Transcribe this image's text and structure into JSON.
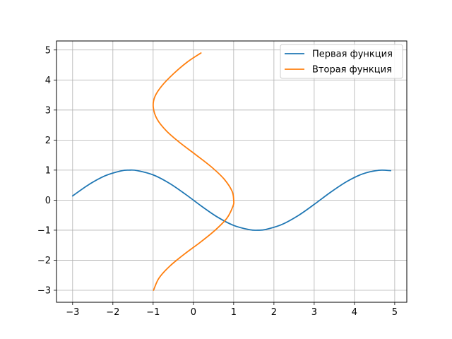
{
  "chart_data": {
    "type": "line",
    "title": "",
    "xlabel": "",
    "ylabel": "",
    "xlim": [
      -3.4,
      5.3
    ],
    "ylim": [
      -3.4,
      5.3
    ],
    "xticks": [
      -3,
      -2,
      -1,
      0,
      1,
      2,
      3,
      4,
      5
    ],
    "yticks": [
      -3,
      -2,
      -1,
      0,
      1,
      2,
      3,
      4,
      5
    ],
    "xtick_labels": [
      "−3",
      "−2",
      "−1",
      "0",
      "1",
      "2",
      "3",
      "4",
      "5"
    ],
    "ytick_labels": [
      "−3",
      "−2",
      "−1",
      "0",
      "1",
      "2",
      "3",
      "4",
      "5"
    ],
    "grid": true,
    "legend_position": "top-right",
    "series": [
      {
        "name": "Первая функция",
        "color": "#1f77b4",
        "x": [
          -3.0,
          -2.6,
          -2.2,
          -1.8,
          -1.6,
          -1.4,
          -1.0,
          -0.6,
          -0.2,
          0.2,
          0.6,
          1.0,
          1.4,
          1.6,
          1.8,
          2.2,
          2.6,
          3.0,
          3.4,
          3.8,
          4.2,
          4.6,
          4.9
        ],
        "y": [
          0.141,
          0.516,
          0.808,
          0.974,
          1.0,
          0.985,
          0.841,
          0.565,
          0.199,
          -0.199,
          -0.565,
          -0.841,
          -0.985,
          -1.0,
          -0.974,
          -0.808,
          -0.516,
          -0.141,
          0.256,
          0.612,
          0.872,
          0.994,
          0.982
        ]
      },
      {
        "name": "Вторая функция",
        "color": "#ff7f0e",
        "x": [
          -0.99,
          -0.857,
          -0.589,
          -0.227,
          0.174,
          0.54,
          0.832,
          0.983,
          1.0,
          0.96,
          0.764,
          0.453,
          0.071,
          -0.323,
          -0.666,
          -0.903,
          -0.997,
          -0.958,
          -0.787,
          -0.5,
          -0.15,
          0.188
        ],
        "y": [
          -3.0,
          -2.6,
          -2.2,
          -1.8,
          -1.4,
          -1.0,
          -0.6,
          -0.2,
          0.0,
          0.3,
          0.7,
          1.1,
          1.5,
          1.9,
          2.3,
          2.7,
          3.1,
          3.44,
          3.8,
          4.2,
          4.6,
          4.9
        ]
      }
    ]
  }
}
